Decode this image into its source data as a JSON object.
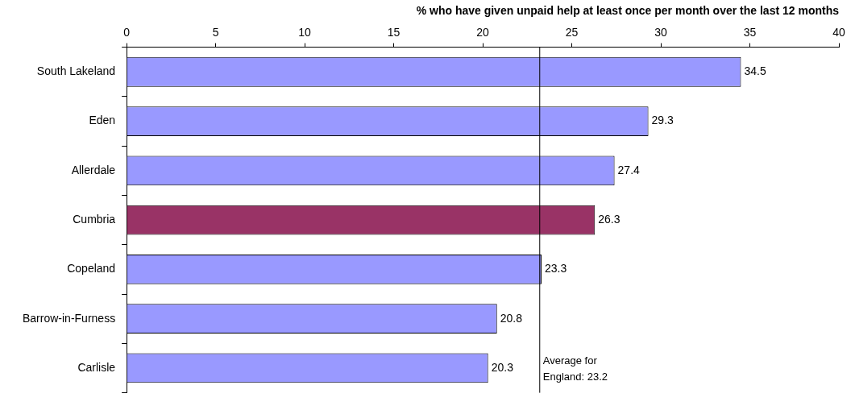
{
  "chart_data": {
    "type": "bar",
    "orientation": "horizontal",
    "title": "% who have given unpaid help at least once per month over the last 12 months",
    "categories": [
      "South Lakeland",
      "Eden",
      "Allerdale",
      "Cumbria",
      "Copeland",
      "Barrow-in-Furness",
      "Carlisle"
    ],
    "values": [
      34.5,
      29.3,
      27.4,
      26.3,
      23.3,
      20.8,
      20.3
    ],
    "colors": [
      "#9999ff",
      "#9999ff",
      "#9999ff",
      "#993366",
      "#9999ff",
      "#9999ff",
      "#9999ff"
    ],
    "xlim": [
      0,
      40
    ],
    "xticks": [
      0,
      5,
      10,
      15,
      20,
      25,
      30,
      35,
      40
    ],
    "data_labels": true,
    "grid": false,
    "legend": false,
    "ref_lines": [
      {
        "axis": "x",
        "value": 23.2,
        "label": "Average for England: 23.2",
        "color": "#000000"
      }
    ]
  }
}
